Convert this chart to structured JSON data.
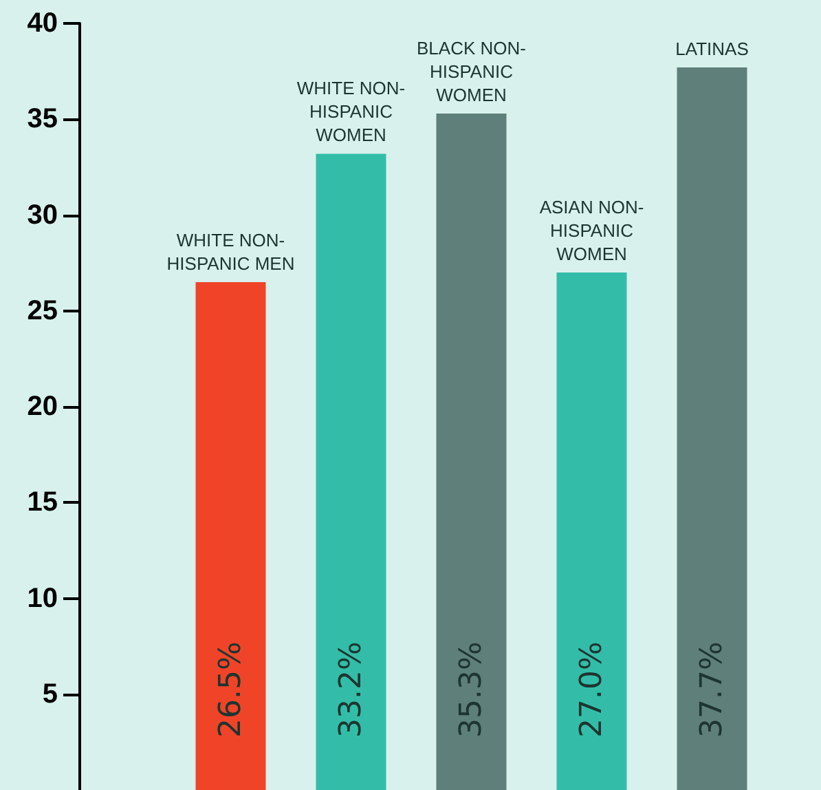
{
  "chart_data": {
    "type": "bar",
    "categories": [
      "WHITE NON-HISPANIC MEN",
      "WHITE NON-HISPANIC WOMEN",
      "BLACK NON-HISPANIC WOMEN",
      "ASIAN NON-HISPANIC WOMEN",
      "LATINAS"
    ],
    "values": [
      26.5,
      33.2,
      35.3,
      27.0,
      37.7
    ],
    "colors": [
      "#f04428",
      "#33bda8",
      "#5e7f7a",
      "#33bda8",
      "#5e7f7a"
    ],
    "value_labels": [
      "26.5%",
      "33.2%",
      "35.3%",
      "27.0%",
      "37.7%"
    ],
    "ylim": [
      0,
      40
    ],
    "yticks": [
      5,
      10,
      15,
      20,
      25,
      30,
      35,
      40
    ],
    "grid": false,
    "tick_labels": "y"
  }
}
